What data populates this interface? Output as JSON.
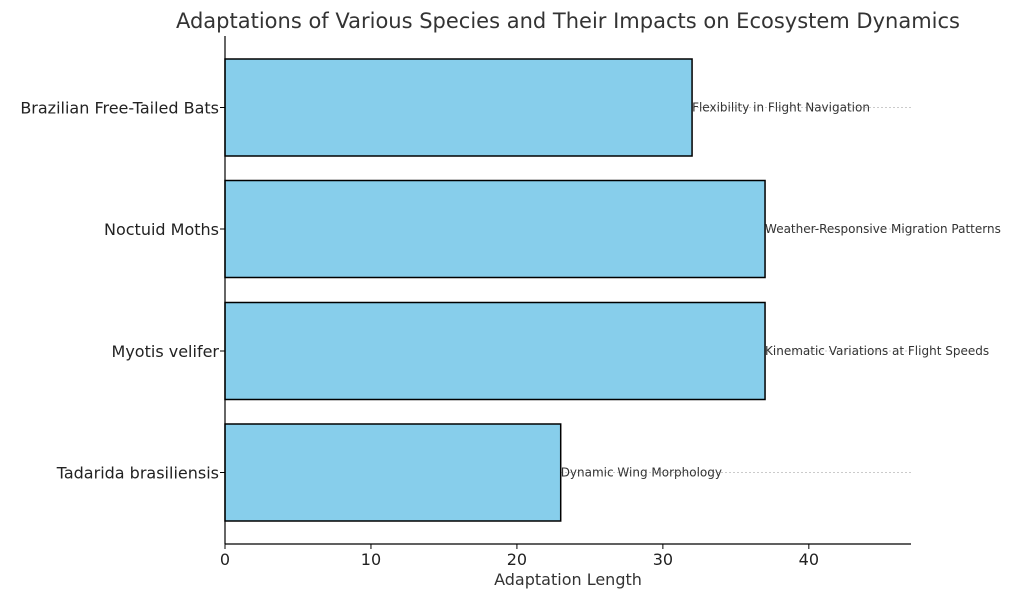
{
  "chart_data": {
    "type": "bar",
    "orientation": "horizontal",
    "title": "Adaptations of Various Species and Their Impacts on Ecosystem Dynamics",
    "xlabel": "Adaptation Length",
    "ylabel": "",
    "xlim": [
      0,
      47
    ],
    "x_ticks": [
      0,
      10,
      20,
      30,
      40
    ],
    "categories": [
      "Brazilian Free-Tailed Bats",
      "Noctuid Moths",
      "Myotis velifer",
      "Tadarida brasiliensis"
    ],
    "values": [
      32,
      37,
      37,
      23
    ],
    "annotations": [
      "Flexibility in Flight Navigation",
      "Weather-Responsive Migration Patterns",
      "Kinematic Variations at Flight Speeds",
      "Dynamic Wing Morphology"
    ],
    "bar_color": "#87ceeb",
    "bar_edge_color": "#000000",
    "gridlines": "dashed horizontal guides at each category",
    "legend": "none"
  }
}
